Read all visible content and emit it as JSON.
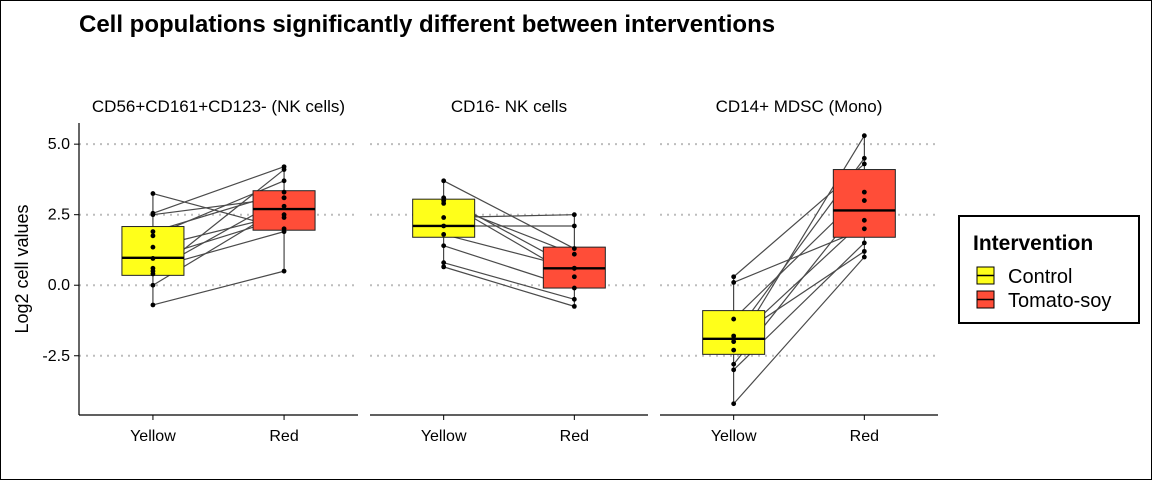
{
  "chart_data": {
    "type": "box",
    "title": "Cell populations significantly different between interventions",
    "ylabel": "Log2 cell values",
    "xlabel": "",
    "ylim": [
      -4.6,
      5.75
    ],
    "yticks": [
      5.0,
      2.5,
      0.0,
      -2.5
    ],
    "ytick_labels": [
      "5.0",
      "2.5",
      "0.0",
      "-2.5"
    ],
    "grid": "dotted horizontal at y ticks",
    "categories": [
      "Yellow",
      "Red"
    ],
    "legend": {
      "title": "Intervention",
      "position": "right",
      "entries": [
        {
          "label": "Control",
          "color": "#FFFF1A"
        },
        {
          "label": "Tomato-soy",
          "color": "#FF4D38"
        }
      ]
    },
    "panels": [
      {
        "title": "CD56+CD161+CD123- (NK cells)",
        "boxes": [
          {
            "category": "Yellow",
            "q1": 0.35,
            "median": 0.97,
            "q3": 2.08,
            "whisker_low": -0.7,
            "whisker_high": 3.25
          },
          {
            "category": "Red",
            "q1": 1.95,
            "median": 2.7,
            "q3": 3.35,
            "whisker_low": 0.45,
            "whisker_high": 4.2
          }
        ],
        "pairs": [
          [
            3.25,
            2.0
          ],
          [
            2.55,
            4.2
          ],
          [
            2.5,
            3.1
          ],
          [
            1.9,
            3.3
          ],
          [
            1.75,
            3.7
          ],
          [
            1.35,
            2.5
          ],
          [
            0.95,
            2.4
          ],
          [
            0.6,
            1.9
          ],
          [
            0.5,
            3.1
          ],
          [
            0.4,
            4.1
          ],
          [
            0.0,
            2.8
          ],
          [
            -0.7,
            0.5
          ]
        ]
      },
      {
        "title": "CD16- NK cells",
        "boxes": [
          {
            "category": "Yellow",
            "q1": 1.7,
            "median": 2.1,
            "q3": 3.05,
            "whisker_low": 0.65,
            "whisker_high": 3.7
          },
          {
            "category": "Red",
            "q1": -0.1,
            "median": 0.6,
            "q3": 1.35,
            "whisker_low": -0.75,
            "whisker_high": 2.5
          }
        ],
        "pairs": [
          [
            3.7,
            1.3
          ],
          [
            3.1,
            0.6
          ],
          [
            3.0,
            0.3
          ],
          [
            2.9,
            1.1
          ],
          [
            2.4,
            2.5
          ],
          [
            2.1,
            2.1
          ],
          [
            1.8,
            0.6
          ],
          [
            1.4,
            -0.1
          ],
          [
            0.8,
            -0.5
          ],
          [
            0.65,
            -0.75
          ]
        ]
      },
      {
        "title": "CD14+ MDSC (Mono)",
        "boxes": [
          {
            "category": "Yellow",
            "q1": -2.45,
            "median": -1.9,
            "q3": -0.9,
            "whisker_low": -4.2,
            "whisker_high": 0.3
          },
          {
            "category": "Red",
            "q1": 1.7,
            "median": 2.65,
            "q3": 4.1,
            "whisker_low": 1.0,
            "whisker_high": 5.3
          }
        ],
        "pairs": [
          [
            0.3,
            4.3
          ],
          [
            0.1,
            2.0
          ],
          [
            -1.2,
            3.3
          ],
          [
            -1.8,
            4.5
          ],
          [
            -1.9,
            1.2
          ],
          [
            -2.0,
            2.3
          ],
          [
            -2.3,
            5.3
          ],
          [
            -2.8,
            3.0
          ],
          [
            -3.0,
            1.5
          ],
          [
            -4.2,
            1.0
          ]
        ]
      }
    ]
  }
}
